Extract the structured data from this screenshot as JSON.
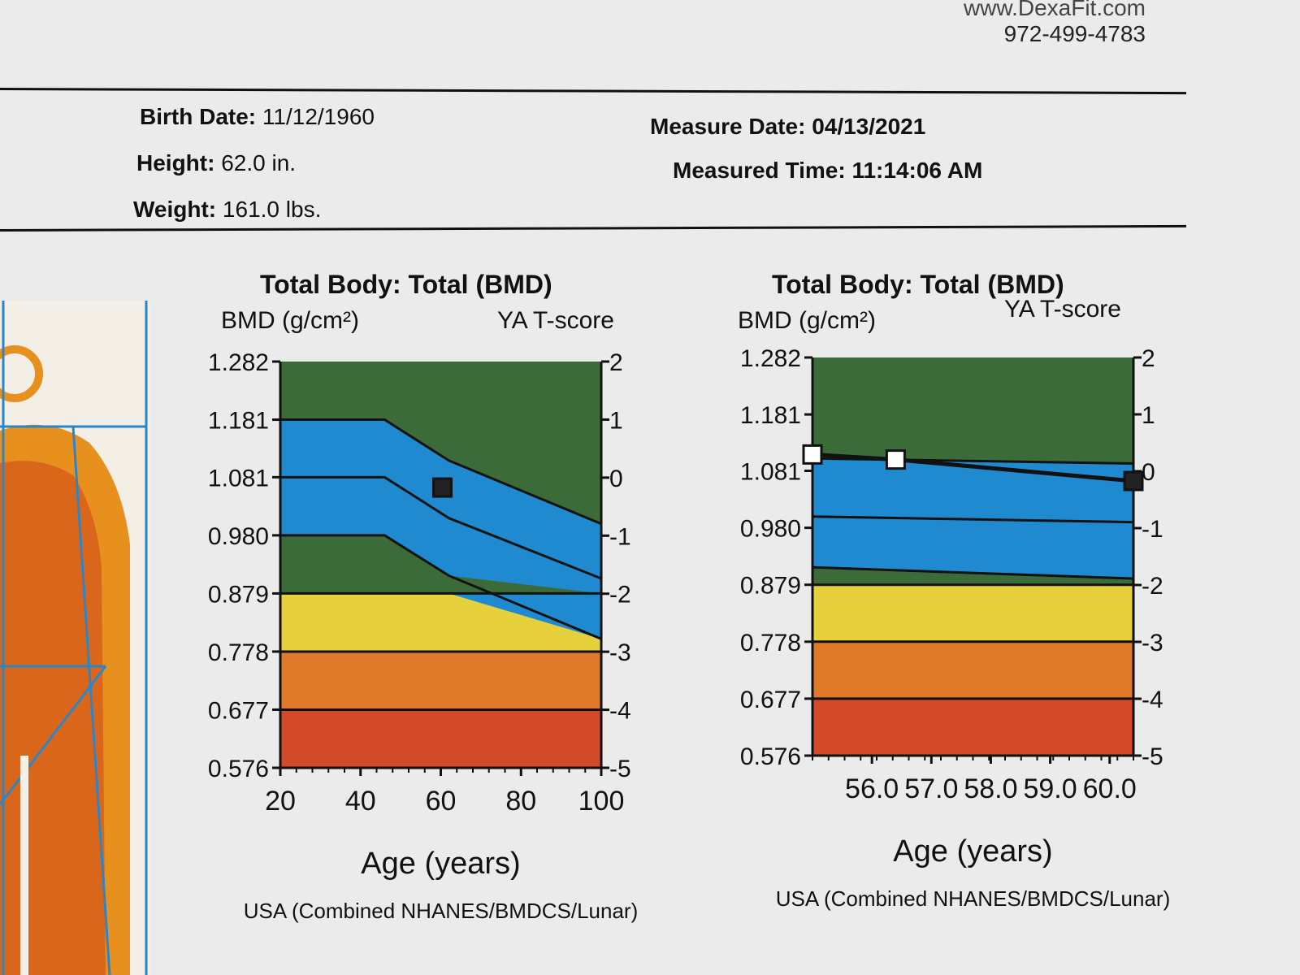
{
  "header": {
    "website": "www.DexaFit.com",
    "phone": "972-499-4783"
  },
  "patient": {
    "birth_date_label": "Birth Date:",
    "birth_date": "11/12/1960",
    "height_label": "Height:",
    "height": "62.0 in.",
    "weight_label": "Weight:",
    "weight": "161.0 lbs.",
    "measure_date_label": "Measure Date:",
    "measure_date": "04/13/2021",
    "measured_time_label": "Measured Time:",
    "measured_time": "11:14:06 AM"
  },
  "colors": {
    "dark_green": "#3c6b3a",
    "blue": "#1f8ad0",
    "yellow": "#e6d13c",
    "orange": "#e07a2a",
    "red": "#d24a2a",
    "marker_fill": "#222222",
    "marker_hollow": "#ffffff"
  },
  "chart_data": [
    {
      "type": "area",
      "title": "Total Body: Total (BMD)",
      "ylabel": "BMD (g/cm²)",
      "y2label": "YA T-score",
      "xlabel": "Age (years)",
      "reference": "USA (Combined NHANES/BMDCS/Lunar)",
      "xlim": [
        20,
        100
      ],
      "ylim": [
        0.576,
        1.282
      ],
      "x_ticks": [
        "20",
        "40",
        "60",
        "80",
        "100"
      ],
      "y_ticks": [
        "1.282",
        "1.181",
        "1.081",
        "0.980",
        "0.879",
        "0.778",
        "0.677",
        "0.576"
      ],
      "y_tick_values": [
        1.282,
        1.181,
        1.081,
        0.98,
        0.879,
        0.778,
        0.677,
        0.576
      ],
      "t_ticks": [
        "2",
        "1",
        "0",
        "-1",
        "-2",
        "-3",
        "-4",
        "-5"
      ],
      "reference_curves": {
        "x": [
          20,
          46,
          62,
          100
        ],
        "plus1": [
          1.181,
          1.181,
          1.11,
          1.0
        ],
        "zero": [
          1.081,
          1.081,
          1.01,
          0.905
        ],
        "minus1": [
          0.98,
          0.98,
          0.91,
          0.8
        ]
      },
      "fixed_lines": [
        0.879,
        0.778,
        0.677
      ],
      "points": [
        {
          "x": 60.4,
          "y": 1.063,
          "style": "filled"
        }
      ]
    },
    {
      "type": "area",
      "title": "Total Body: Total (BMD)",
      "ylabel": "BMD (g/cm²)",
      "y2label": "YA T-score",
      "xlabel": "Age (years)",
      "reference": "USA (Combined NHANES/BMDCS/Lunar)",
      "xlim": [
        55.0,
        60.4
      ],
      "ylim": [
        0.576,
        1.282
      ],
      "x_ticks": [
        "56.0",
        "57.0",
        "58.0",
        "59.0",
        "60.0"
      ],
      "x_tick_values": [
        56.0,
        57.0,
        58.0,
        59.0,
        60.0
      ],
      "y_ticks": [
        "1.282",
        "1.181",
        "1.081",
        "0.980",
        "0.879",
        "0.778",
        "0.677",
        "0.576"
      ],
      "y_tick_values": [
        1.282,
        1.181,
        1.081,
        0.98,
        0.879,
        0.778,
        0.677,
        0.576
      ],
      "t_ticks": [
        "2",
        "1",
        "0",
        "-1",
        "-2",
        "-3",
        "-4",
        "-5"
      ],
      "reference_curves": {
        "x": [
          55.0,
          60.4
        ],
        "plus1": [
          1.103,
          1.094
        ],
        "zero": [
          1.0,
          0.99
        ],
        "minus1": [
          0.91,
          0.89
        ]
      },
      "fixed_lines": [
        0.879,
        0.778,
        0.677
      ],
      "series": [
        {
          "points": [
            {
              "x": 55.0,
              "y": 1.11,
              "style": "hollow"
            },
            {
              "x": 56.4,
              "y": 1.101,
              "style": "hollow"
            },
            {
              "x": 60.4,
              "y": 1.063,
              "style": "filled"
            }
          ]
        }
      ]
    }
  ]
}
